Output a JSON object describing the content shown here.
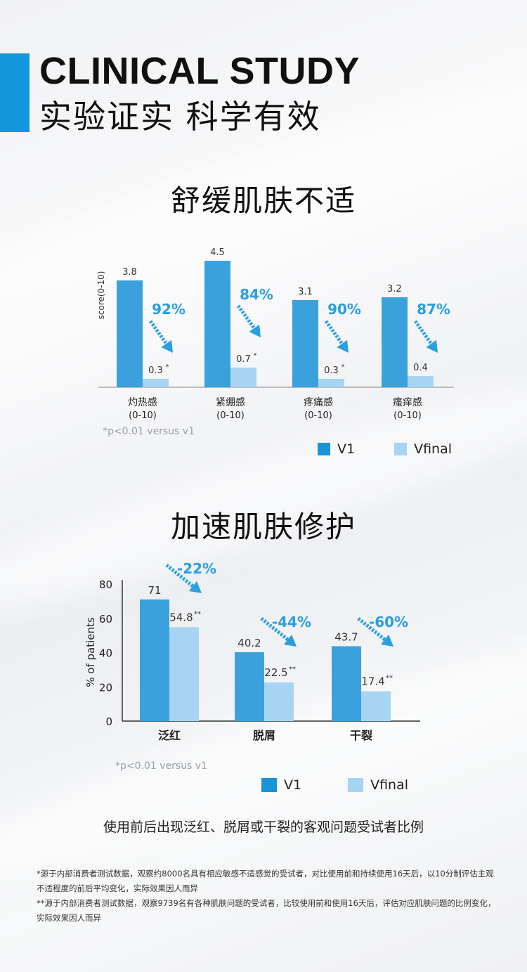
{
  "header": {
    "en": "CLINICAL STUDY",
    "cn": "实验证实 科学有效"
  },
  "section1": {
    "title": "舒缓肌肤不适",
    "ylabel": "score(0-10)",
    "note": "*p<0.01 versus v1"
  },
  "section2": {
    "title": "加速肌肤修护",
    "ylabel": "% of patients",
    "note": "*p<0.01 versus v1",
    "caption": "使用前后出现泛红、脱屑或干裂的客观问题受试者比例"
  },
  "legend": {
    "v1": "V1",
    "vfinal": "Vfinal"
  },
  "colors": {
    "v1": "#3aa1dc",
    "vfinal": "#a6d4f2",
    "accent": "#1296dc",
    "arrow": "#2a9fe0"
  },
  "footnotes": {
    "f1": "*源于内部消费者测试数据，观察约8000名具有相应敏感不适感觉的受试者，对比使用前和持续使用16天后，以10分制评估主观不适程度的前后平均变化，实际效果因人而异",
    "f2": "**源于内部消费者测试数据，观察9739名有各种肌肤问题的受试者，比较使用前和使用16天后，评估对应肌肤问题的比例变化，实际效果因人而异"
  },
  "chart_data": [
    {
      "type": "bar",
      "title": "舒缓肌肤不适",
      "ylabel": "score(0-10)",
      "ylim": [
        0,
        5
      ],
      "categories": [
        {
          "name": "灼热感",
          "sub": "(0-10)"
        },
        {
          "name": "紧绷感",
          "sub": "(0-10)"
        },
        {
          "name": "疼痛感",
          "sub": "(0-10)"
        },
        {
          "name": "瘙痒感",
          "sub": "(0-10)"
        }
      ],
      "series": [
        {
          "name": "V1",
          "values": [
            3.8,
            4.5,
            3.1,
            3.2
          ],
          "labels": [
            "3.8",
            "4.5",
            "3.1",
            "3.2"
          ]
        },
        {
          "name": "Vfinal",
          "values": [
            0.3,
            0.7,
            0.3,
            0.4
          ],
          "labels": [
            "0.3",
            "0.7",
            "0.3",
            "0.4"
          ],
          "marks": [
            "*",
            "*",
            "*",
            ""
          ]
        }
      ],
      "changes": [
        "92%",
        "84%",
        "90%",
        "87%"
      ],
      "legend_position": "bottom-right"
    },
    {
      "type": "bar",
      "title": "加速肌肤修护",
      "ylabel": "% of patients",
      "ylim": [
        0,
        80
      ],
      "yticks": [
        0,
        20,
        40,
        60,
        80
      ],
      "categories": [
        {
          "name": "泛红"
        },
        {
          "name": "脱屑"
        },
        {
          "name": "干裂"
        }
      ],
      "series": [
        {
          "name": "V1",
          "values": [
            71,
            40.2,
            43.7
          ],
          "labels": [
            "71",
            "40.2",
            "43.7"
          ]
        },
        {
          "name": "Vfinal",
          "values": [
            54.8,
            22.5,
            17.4
          ],
          "labels": [
            "54.8",
            "22.5",
            "17.4"
          ],
          "marks": [
            "**",
            "**",
            "**"
          ]
        }
      ],
      "changes": [
        "-22%",
        "-44%",
        "-60%"
      ],
      "legend_position": "bottom-right"
    }
  ]
}
